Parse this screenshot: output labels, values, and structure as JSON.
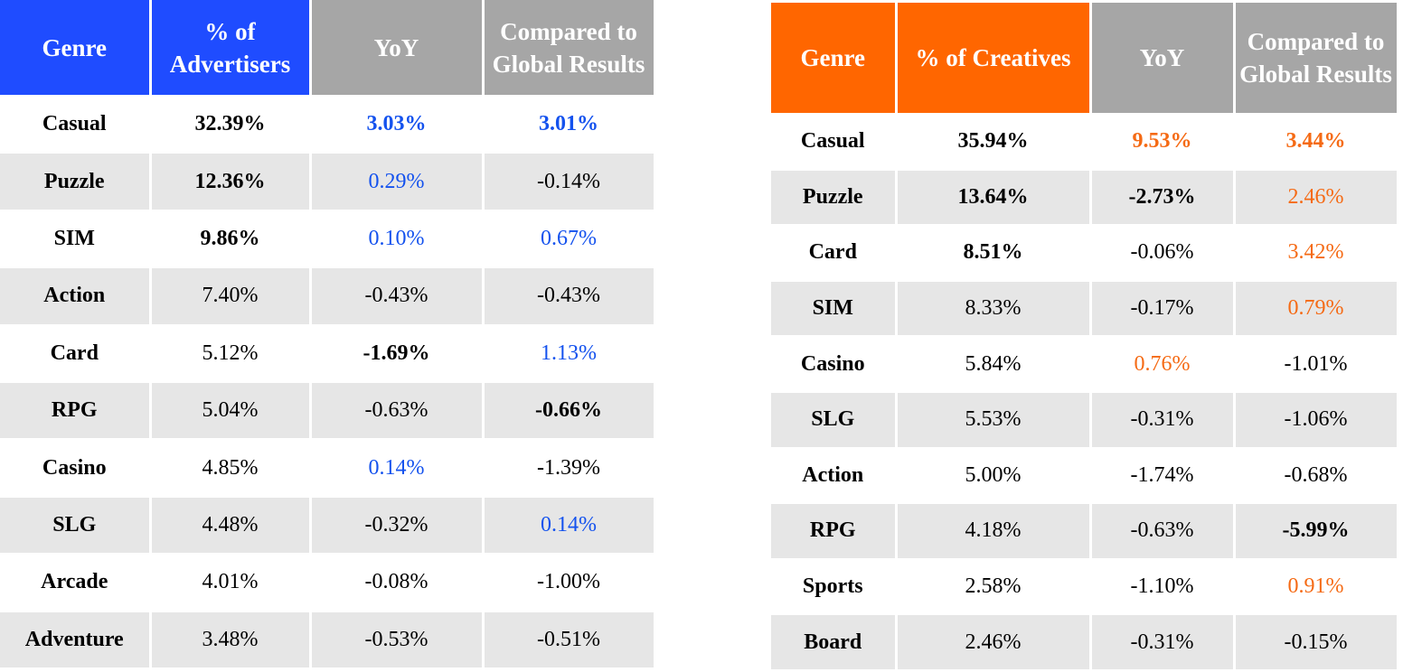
{
  "advertisers": {
    "colors": {
      "primary": "#1f4cff",
      "gray": "#a6a6a6",
      "highlight": "#1452ee"
    },
    "headers": [
      "Genre",
      "% of Advertisers",
      "YoY",
      "Compared to Global Results"
    ],
    "rows": [
      {
        "genre": "Casual",
        "share": "32.39%",
        "yoy": "3.03%",
        "global": "3.01%",
        "style": [
          "b",
          "b",
          "b-blue",
          "b-blue"
        ]
      },
      {
        "genre": "Puzzle",
        "share": "12.36%",
        "yoy": "0.29%",
        "global": "-0.14%",
        "style": [
          "b",
          "b",
          "blue",
          ""
        ]
      },
      {
        "genre": "SIM",
        "share": "9.86%",
        "yoy": "0.10%",
        "global": "0.67%",
        "style": [
          "b",
          "b",
          "blue",
          "blue"
        ]
      },
      {
        "genre": "Action",
        "share": "7.40%",
        "yoy": "-0.43%",
        "global": "-0.43%",
        "style": [
          "b",
          "",
          "",
          ""
        ]
      },
      {
        "genre": "Card",
        "share": "5.12%",
        "yoy": "-1.69%",
        "global": "1.13%",
        "style": [
          "b",
          "",
          "b",
          "blue"
        ]
      },
      {
        "genre": "RPG",
        "share": "5.04%",
        "yoy": "-0.63%",
        "global": "-0.66%",
        "style": [
          "b",
          "",
          "",
          "b"
        ]
      },
      {
        "genre": "Casino",
        "share": "4.85%",
        "yoy": "0.14%",
        "global": "-1.39%",
        "style": [
          "b",
          "",
          "blue",
          ""
        ]
      },
      {
        "genre": "SLG",
        "share": "4.48%",
        "yoy": "-0.32%",
        "global": "0.14%",
        "style": [
          "b",
          "",
          "",
          "blue"
        ]
      },
      {
        "genre": "Arcade",
        "share": "4.01%",
        "yoy": "-0.08%",
        "global": "-1.00%",
        "style": [
          "b",
          "",
          "",
          ""
        ]
      },
      {
        "genre": "Adventure",
        "share": "3.48%",
        "yoy": "-0.53%",
        "global": "-0.51%",
        "style": [
          "b",
          "",
          "",
          ""
        ]
      }
    ]
  },
  "creatives": {
    "colors": {
      "primary": "#ff6600",
      "gray": "#a6a6a6",
      "highlight": "#f56a14"
    },
    "headers": [
      "Genre",
      "% of Creatives",
      "YoY",
      "Compared to Global Results"
    ],
    "rows": [
      {
        "genre": "Casual",
        "share": "35.94%",
        "yoy": "9.53%",
        "global": "3.44%",
        "style": [
          "b",
          "b",
          "b-orange",
          "b-orange"
        ]
      },
      {
        "genre": "Puzzle",
        "share": "13.64%",
        "yoy": "-2.73%",
        "global": "2.46%",
        "style": [
          "b",
          "b",
          "b",
          "orange"
        ]
      },
      {
        "genre": "Card",
        "share": "8.51%",
        "yoy": "-0.06%",
        "global": "3.42%",
        "style": [
          "b",
          "b",
          "",
          "orange"
        ]
      },
      {
        "genre": "SIM",
        "share": "8.33%",
        "yoy": "-0.17%",
        "global": "0.79%",
        "style": [
          "b",
          "",
          "",
          "orange"
        ]
      },
      {
        "genre": "Casino",
        "share": "5.84%",
        "yoy": "0.76%",
        "global": "-1.01%",
        "style": [
          "b",
          "",
          "orange",
          ""
        ]
      },
      {
        "genre": "SLG",
        "share": "5.53%",
        "yoy": "-0.31%",
        "global": "-1.06%",
        "style": [
          "b",
          "",
          "",
          ""
        ]
      },
      {
        "genre": "Action",
        "share": "5.00%",
        "yoy": "-1.74%",
        "global": "-0.68%",
        "style": [
          "b",
          "",
          "",
          ""
        ]
      },
      {
        "genre": "RPG",
        "share": "4.18%",
        "yoy": "-0.63%",
        "global": "-5.99%",
        "style": [
          "b",
          "",
          "",
          "b"
        ]
      },
      {
        "genre": "Sports",
        "share": "2.58%",
        "yoy": "-1.10%",
        "global": "0.91%",
        "style": [
          "b",
          "",
          "",
          "orange"
        ]
      },
      {
        "genre": "Board",
        "share": "2.46%",
        "yoy": "-0.31%",
        "global": "-0.15%",
        "style": [
          "b",
          "",
          "",
          ""
        ]
      }
    ]
  }
}
